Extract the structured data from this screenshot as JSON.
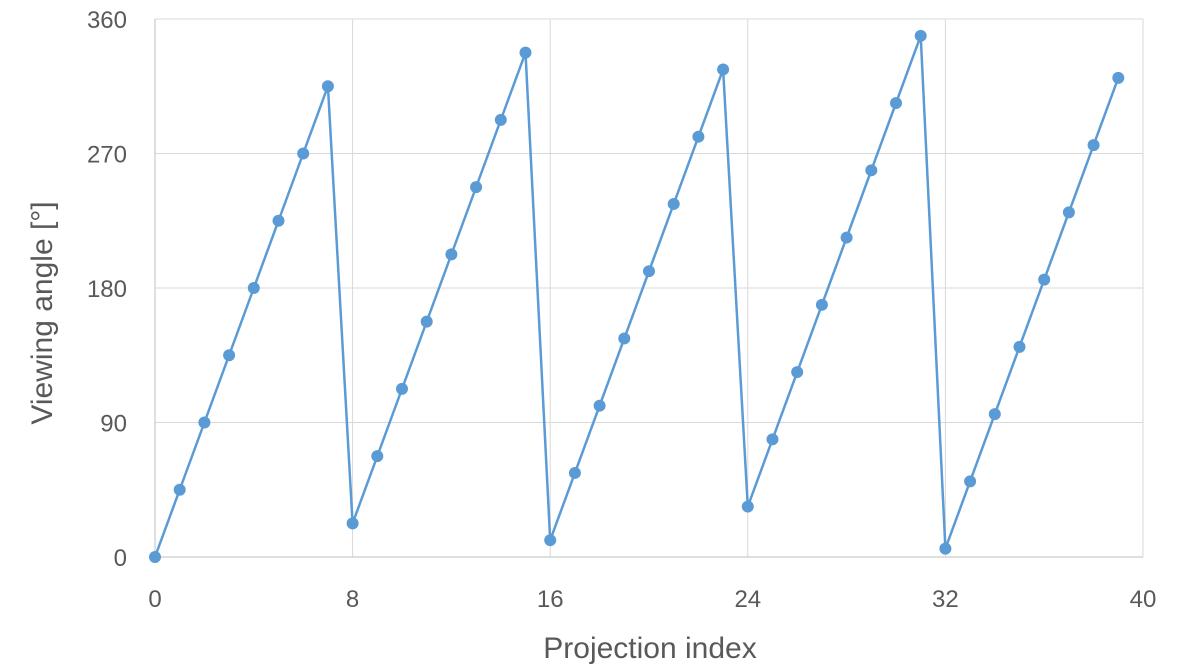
{
  "chart_data": {
    "type": "line",
    "title": "",
    "xlabel": "Projection index",
    "ylabel": "Viewing angle [°]",
    "xlim": [
      0,
      40
    ],
    "ylim": [
      0,
      360
    ],
    "xticks": [
      "0",
      "8",
      "16",
      "24",
      "32",
      "40"
    ],
    "yticks": [
      "0",
      "90",
      "180",
      "270",
      "360"
    ],
    "grid": true,
    "legend": "none",
    "series_color": "#5B9BD5",
    "series": [
      {
        "x": [
          0,
          1,
          2,
          3,
          4,
          5,
          6,
          7,
          8,
          9,
          10,
          11,
          12,
          13,
          14,
          15,
          16,
          17,
          18,
          19,
          20,
          21,
          22,
          23,
          24,
          25,
          26,
          27,
          28,
          29,
          30,
          31,
          32,
          33,
          34,
          35,
          36,
          37,
          38,
          39
        ],
        "values": [
          0,
          45,
          90,
          135,
          180,
          225,
          270,
          315,
          22.5,
          67.5,
          112.5,
          157.5,
          202.5,
          247.5,
          292.5,
          337.5,
          11.25,
          56.25,
          101.25,
          146.25,
          191.25,
          236.25,
          281.25,
          326.25,
          33.75,
          78.75,
          123.75,
          168.75,
          213.75,
          258.75,
          303.75,
          348.75,
          5.625,
          50.625,
          95.625,
          140.625,
          185.625,
          230.625,
          275.625,
          320.625
        ]
      }
    ]
  }
}
